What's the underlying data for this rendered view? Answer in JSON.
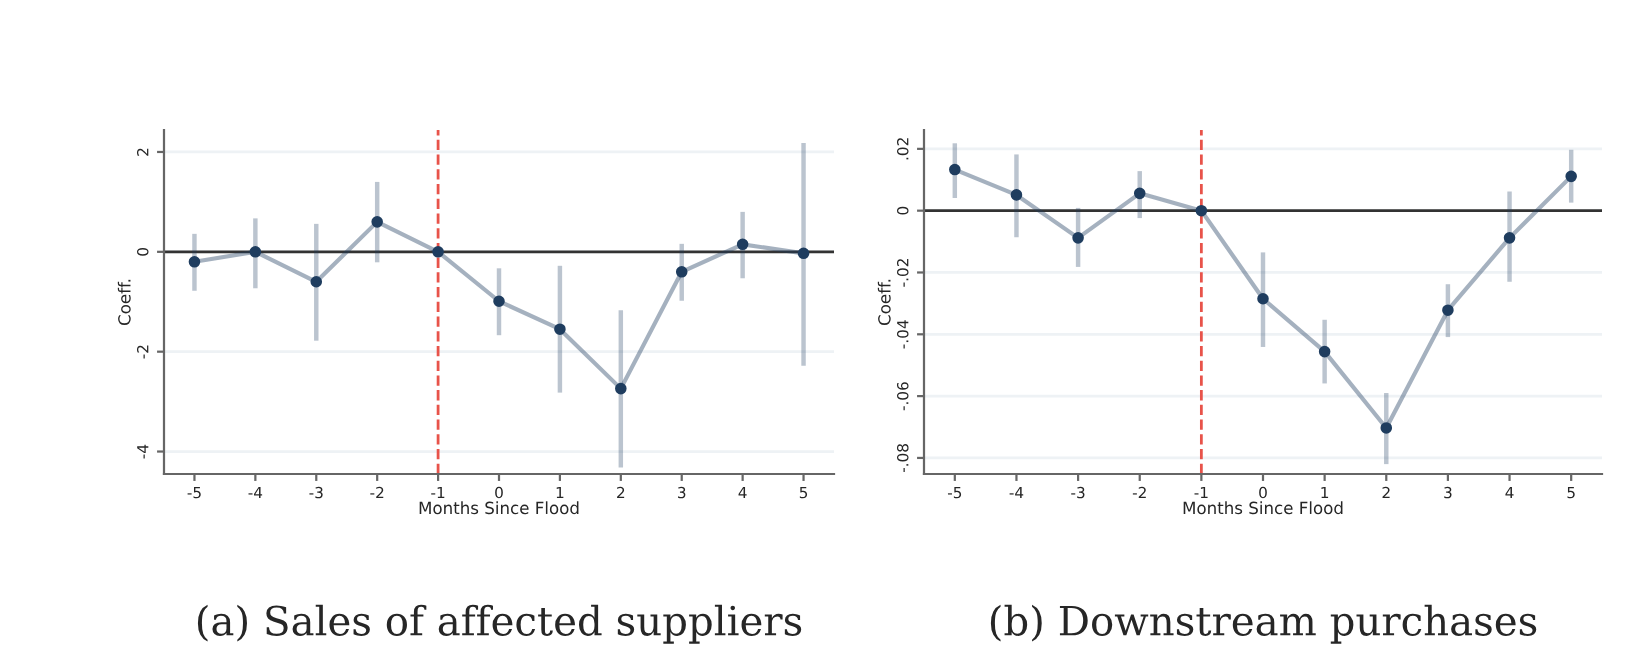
{
  "chart_data": [
    {
      "type": "line",
      "title": "(a) Sales of affected suppliers",
      "xlabel": "Months Since Flood",
      "ylabel": "Coeff.",
      "x": [
        -5,
        -4,
        -3,
        -2,
        -1,
        0,
        1,
        2,
        3,
        4,
        5
      ],
      "series": [
        {
          "color": "#1f3d5f",
          "values": [
            -0.2,
            0,
            -0.6,
            0.6,
            0,
            -0.99,
            -1.55,
            -2.74,
            -0.4,
            0.15,
            -0.03
          ],
          "errors": [
            [
              -0.78,
              0.36
            ],
            [
              -0.73,
              0.67
            ],
            [
              -1.78,
              0.56
            ],
            [
              -0.21,
              1.4
            ],
            null,
            [
              -1.67,
              -0.33
            ],
            [
              -2.82,
              -0.28
            ],
            [
              -4.32,
              -1.17
            ],
            [
              -0.98,
              0.16
            ],
            [
              -0.53,
              0.8
            ],
            [
              -2.28,
              2.18
            ]
          ]
        }
      ],
      "xlim": [
        -5.5,
        5.5
      ],
      "xticks": [
        -5,
        -4,
        -3,
        -2,
        -1,
        0,
        1,
        2,
        3,
        4,
        5
      ],
      "ylim": [
        -4.45,
        2.44
      ],
      "yticks": [
        -4,
        -2,
        0,
        2
      ],
      "ref_lines": [
        {
          "axis": "x",
          "value": -1,
          "color": "#e8534a",
          "line_style": "dashed"
        },
        {
          "axis": "y",
          "value": 0,
          "color": "#333333",
          "line_style": "solid"
        }
      ],
      "grid": "y",
      "marker": "circle",
      "line_style": "solid",
      "legend": false
    },
    {
      "type": "line",
      "title": "(b) Downstream purchases",
      "xlabel": "Months Since Flood",
      "ylabel": "Coeff.",
      "x": [
        -5,
        -4,
        -3,
        -2,
        -1,
        0,
        1,
        2,
        3,
        4,
        5
      ],
      "series": [
        {
          "color": "#1f3d5f",
          "values": [
            0.0133,
            0.0051,
            -0.0088,
            0.0056,
            0,
            -0.0285,
            -0.0456,
            -0.0703,
            -0.0322,
            -0.0088,
            0.0111
          ],
          "errors": [
            [
              0.0041,
              0.0218
            ],
            [
              -0.0086,
              0.0182
            ],
            [
              -0.0182,
              0.0009
            ],
            [
              -0.0024,
              0.0128
            ],
            null,
            [
              -0.0441,
              -0.0135
            ],
            [
              -0.0559,
              -0.0353
            ],
            [
              -0.082,
              -0.059
            ],
            [
              -0.0409,
              -0.0238
            ],
            [
              -0.023,
              0.0062
            ],
            [
              0.0026,
              0.0197
            ]
          ]
        }
      ],
      "xlim": [
        -5.5,
        5.5
      ],
      "xticks": [
        -5,
        -4,
        -3,
        -2,
        -1,
        0,
        1,
        2,
        3,
        4,
        5
      ],
      "ylim": [
        -0.0852,
        0.0261
      ],
      "yticks": [
        {
          "value": -0.08,
          "label": "-.08"
        },
        {
          "value": -0.06,
          "label": "-.06"
        },
        {
          "value": -0.04,
          "label": "-.04"
        },
        {
          "value": -0.02,
          "label": "-.02"
        },
        0,
        {
          "value": 0.02,
          "label": ".02"
        }
      ],
      "ref_lines": [
        {
          "axis": "x",
          "value": -1,
          "color": "#e8534a",
          "line_style": "dashed"
        },
        {
          "axis": "y",
          "value": 0,
          "color": "#333333",
          "line_style": "solid"
        }
      ],
      "grid": "y",
      "marker": "circle",
      "line_style": "solid",
      "legend": false
    }
  ]
}
